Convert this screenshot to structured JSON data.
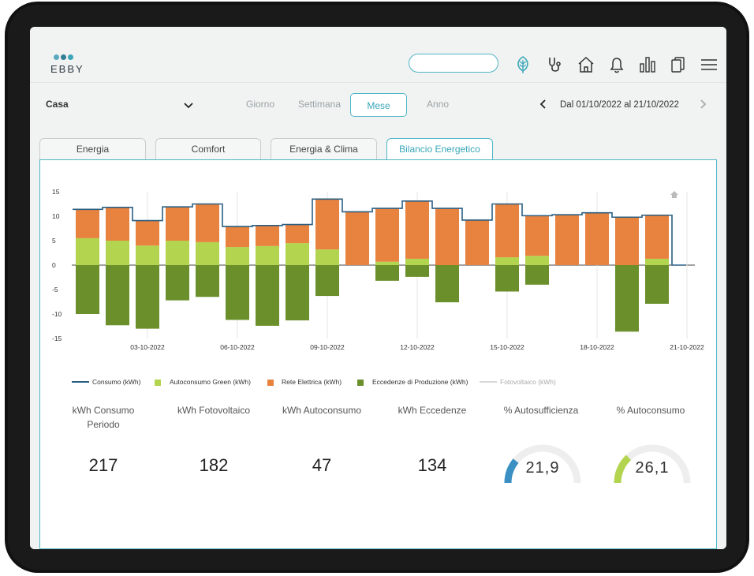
{
  "app": {
    "logo_text": "EBBY",
    "logo_colors": [
      "#5aaabd",
      "#2f7f95",
      "#3aa6b8"
    ]
  },
  "header": {
    "search_placeholder": "",
    "icons": [
      "leaf-icon",
      "stethoscope-icon",
      "home-icon",
      "bell-icon",
      "bar-chart-icon",
      "documents-icon",
      "menu-icon"
    ]
  },
  "toolbar": {
    "house": "Casa",
    "periods": [
      "Giorno",
      "Settimana",
      "Mese",
      "Anno"
    ],
    "active_period": "Mese",
    "date_range": "Dal 01/10/2022 al 21/10/2022",
    "prev": "‹",
    "next": "›"
  },
  "tabs": [
    "Energia",
    "Comfort",
    "Energia & Clima",
    "Bilancio Energetico"
  ],
  "active_tab": "Bilancio Energetico",
  "colors": {
    "accent": "#3aa6b8",
    "autoconsumo": "#b3d44e",
    "rete": "#e8823f",
    "eccedenze": "#6b8f2a",
    "consumo_line": "#2b5f82",
    "fotovoltaico": "#cccccc",
    "gauge_blue": "#3a8fc3",
    "gauge_green": "#b3d44e",
    "gauge_track": "#eeeeee"
  },
  "chart_data": {
    "type": "bar",
    "ylim": [
      -15,
      15
    ],
    "yticks": [
      15,
      10,
      5,
      0,
      -5,
      -10,
      -15
    ],
    "x_tick_labels": [
      "03-10-2022",
      "06-10-2022",
      "09-10-2022",
      "12-10-2022",
      "15-10-2022",
      "18-10-2022",
      "21-10-2022"
    ],
    "x_tick_days": [
      3,
      6,
      9,
      12,
      15,
      18,
      21
    ],
    "days": [
      1,
      2,
      3,
      4,
      5,
      6,
      7,
      8,
      9,
      10,
      11,
      12,
      13,
      14,
      15,
      16,
      17,
      18,
      19,
      20
    ],
    "series": [
      {
        "name": "Autoconsumo Green (kWh)",
        "stack": "pos",
        "values": [
          5.5,
          5.0,
          4.0,
          5.0,
          4.7,
          3.7,
          3.9,
          4.5,
          3.2,
          0,
          0.7,
          1.3,
          0,
          0,
          1.6,
          1.9,
          0,
          0,
          0,
          1.3
        ]
      },
      {
        "name": "Rete Elettrica (kWh)",
        "stack": "pos",
        "values": [
          5.9,
          6.8,
          5.1,
          6.9,
          7.8,
          4.2,
          4.2,
          3.8,
          10.3,
          10.9,
          10.9,
          11.8,
          11.6,
          9.2,
          10.9,
          8.2,
          10.3,
          10.7,
          9.8,
          8.9
        ]
      },
      {
        "name": "Eccedenze di Produzione (kWh)",
        "stack": "neg",
        "values": [
          -10.0,
          -12.3,
          -13.0,
          -7.2,
          -6.5,
          -11.2,
          -12.4,
          -11.3,
          -6.3,
          0,
          -3.2,
          -2.4,
          -7.6,
          0,
          -5.4,
          -4.0,
          0,
          0,
          -13.6,
          -7.9
        ]
      }
    ],
    "consumo_line": {
      "name": "Consumo (kWh)",
      "values": [
        11.4,
        11.8,
        9.1,
        11.9,
        12.5,
        7.9,
        8.1,
        8.3,
        13.5,
        10.9,
        11.6,
        13.1,
        11.6,
        9.2,
        12.5,
        10.1,
        10.3,
        10.7,
        9.8,
        10.2
      ]
    },
    "fotovoltaico_line": {
      "name": "Fotovoltaico (kWh)"
    },
    "legend": [
      "Consumo (kWh)",
      "Autoconsumo Green (kWh)",
      "Rete Elettrica (kWh)",
      "Eccedenze di Produzione (kWh)",
      "Fotovoltaico (kWh)"
    ]
  },
  "kpis": [
    {
      "label": "kWh Consumo Periodo",
      "value": "217"
    },
    {
      "label": "kWh Fotovoltaico",
      "value": "182"
    },
    {
      "label": "kWh Autoconsumo",
      "value": "47"
    },
    {
      "label": "kWh Eccedenze",
      "value": "134"
    }
  ],
  "gauges": [
    {
      "label": "% Autosufficienza",
      "value": "21,9",
      "fraction": 0.219
    },
    {
      "label": "% Autoconsumo",
      "value": "26,1",
      "fraction": 0.261
    }
  ]
}
